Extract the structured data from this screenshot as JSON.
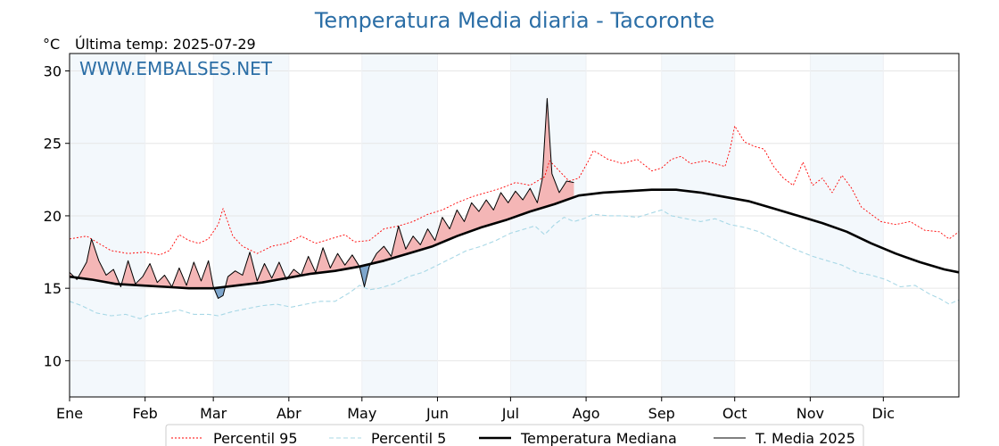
{
  "chart_data": {
    "type": "line",
    "title": "Temperatura Media diaria - Tacoronte",
    "unit_label": "°C",
    "last_temp_label": "Última temp: 2025-07-29",
    "watermark": "WWW.EMBALSES.NET",
    "x_axis": {
      "unit": "day of year",
      "range": [
        1,
        366
      ],
      "month_ticks": [
        {
          "label": "Ene",
          "day": 1
        },
        {
          "label": "Feb",
          "day": 32
        },
        {
          "label": "Mar",
          "day": 60
        },
        {
          "label": "Abr",
          "day": 91
        },
        {
          "label": "May",
          "day": 121
        },
        {
          "label": "Jun",
          "day": 152
        },
        {
          "label": "Jul",
          "day": 182
        },
        {
          "label": "Ago",
          "day": 213
        },
        {
          "label": "Sep",
          "day": 244
        },
        {
          "label": "Oct",
          "day": 274
        },
        {
          "label": "Nov",
          "day": 305
        },
        {
          "label": "Dic",
          "day": 335
        }
      ]
    },
    "y_axis": {
      "range": [
        7.5,
        31.2
      ],
      "ticks": [
        10,
        15,
        20,
        25,
        30
      ]
    },
    "grid": true,
    "legend_position": "bottom",
    "series": [
      {
        "name": "Percentil 95",
        "color": "#ff0000",
        "style": "dotted",
        "points": [
          [
            1,
            18.4
          ],
          [
            8,
            18.6
          ],
          [
            12,
            18.2
          ],
          [
            18,
            17.6
          ],
          [
            25,
            17.4
          ],
          [
            32,
            17.5
          ],
          [
            38,
            17.3
          ],
          [
            42,
            17.6
          ],
          [
            46,
            18.7
          ],
          [
            50,
            18.3
          ],
          [
            54,
            18.1
          ],
          [
            58,
            18.4
          ],
          [
            62,
            19.4
          ],
          [
            64,
            20.5
          ],
          [
            68,
            18.6
          ],
          [
            72,
            17.9
          ],
          [
            78,
            17.4
          ],
          [
            84,
            17.9
          ],
          [
            90,
            18.1
          ],
          [
            96,
            18.6
          ],
          [
            102,
            18.1
          ],
          [
            108,
            18.4
          ],
          [
            114,
            18.7
          ],
          [
            118,
            18.2
          ],
          [
            124,
            18.3
          ],
          [
            130,
            19.1
          ],
          [
            136,
            19.3
          ],
          [
            142,
            19.6
          ],
          [
            148,
            20.1
          ],
          [
            154,
            20.4
          ],
          [
            160,
            20.9
          ],
          [
            166,
            21.3
          ],
          [
            172,
            21.6
          ],
          [
            178,
            21.9
          ],
          [
            184,
            22.3
          ],
          [
            190,
            22.1
          ],
          [
            196,
            22.7
          ],
          [
            198,
            23.8
          ],
          [
            202,
            23.1
          ],
          [
            206,
            22.4
          ],
          [
            210,
            22.6
          ],
          [
            214,
            23.8
          ],
          [
            216,
            24.5
          ],
          [
            222,
            23.9
          ],
          [
            228,
            23.6
          ],
          [
            234,
            23.9
          ],
          [
            240,
            23.1
          ],
          [
            244,
            23.3
          ],
          [
            248,
            23.9
          ],
          [
            252,
            24.1
          ],
          [
            256,
            23.6
          ],
          [
            262,
            23.8
          ],
          [
            266,
            23.6
          ],
          [
            270,
            23.4
          ],
          [
            272,
            24.5
          ],
          [
            274,
            26.2
          ],
          [
            278,
            25.1
          ],
          [
            282,
            24.8
          ],
          [
            286,
            24.6
          ],
          [
            290,
            23.4
          ],
          [
            294,
            22.6
          ],
          [
            298,
            22.1
          ],
          [
            302,
            23.7
          ],
          [
            306,
            22.1
          ],
          [
            310,
            22.6
          ],
          [
            314,
            21.6
          ],
          [
            318,
            22.8
          ],
          [
            322,
            21.9
          ],
          [
            326,
            20.6
          ],
          [
            330,
            20.1
          ],
          [
            334,
            19.6
          ],
          [
            340,
            19.4
          ],
          [
            346,
            19.6
          ],
          [
            352,
            19.0
          ],
          [
            358,
            18.9
          ],
          [
            362,
            18.4
          ],
          [
            366,
            18.9
          ]
        ]
      },
      {
        "name": "Percentil 5",
        "color": "#a8d8e6",
        "style": "dashed",
        "points": [
          [
            1,
            14.1
          ],
          [
            6,
            13.8
          ],
          [
            12,
            13.3
          ],
          [
            18,
            13.1
          ],
          [
            24,
            13.2
          ],
          [
            30,
            12.9
          ],
          [
            34,
            13.2
          ],
          [
            40,
            13.3
          ],
          [
            46,
            13.5
          ],
          [
            52,
            13.2
          ],
          [
            58,
            13.2
          ],
          [
            62,
            13.1
          ],
          [
            68,
            13.4
          ],
          [
            74,
            13.6
          ],
          [
            80,
            13.8
          ],
          [
            86,
            13.9
          ],
          [
            92,
            13.7
          ],
          [
            98,
            13.9
          ],
          [
            104,
            14.1
          ],
          [
            110,
            14.1
          ],
          [
            116,
            14.7
          ],
          [
            120,
            15.2
          ],
          [
            124,
            14.9
          ],
          [
            128,
            15.0
          ],
          [
            134,
            15.3
          ],
          [
            140,
            15.8
          ],
          [
            146,
            16.1
          ],
          [
            152,
            16.6
          ],
          [
            158,
            17.1
          ],
          [
            164,
            17.6
          ],
          [
            170,
            17.9
          ],
          [
            176,
            18.3
          ],
          [
            182,
            18.8
          ],
          [
            186,
            19.0
          ],
          [
            192,
            19.3
          ],
          [
            196,
            18.7
          ],
          [
            200,
            19.4
          ],
          [
            204,
            19.9
          ],
          [
            208,
            19.6
          ],
          [
            212,
            19.8
          ],
          [
            216,
            20.1
          ],
          [
            222,
            20.0
          ],
          [
            228,
            20.0
          ],
          [
            234,
            19.9
          ],
          [
            240,
            20.2
          ],
          [
            244,
            20.4
          ],
          [
            248,
            20.0
          ],
          [
            254,
            19.8
          ],
          [
            260,
            19.6
          ],
          [
            266,
            19.8
          ],
          [
            272,
            19.4
          ],
          [
            278,
            19.2
          ],
          [
            284,
            18.9
          ],
          [
            290,
            18.4
          ],
          [
            296,
            17.9
          ],
          [
            300,
            17.6
          ],
          [
            306,
            17.2
          ],
          [
            312,
            16.9
          ],
          [
            318,
            16.6
          ],
          [
            324,
            16.1
          ],
          [
            330,
            15.9
          ],
          [
            336,
            15.6
          ],
          [
            342,
            15.1
          ],
          [
            348,
            15.2
          ],
          [
            354,
            14.6
          ],
          [
            358,
            14.3
          ],
          [
            362,
            13.9
          ],
          [
            366,
            14.2
          ]
        ]
      },
      {
        "name": "Temperatura Mediana",
        "color": "#000000",
        "style": "solid-thick",
        "points": [
          [
            1,
            15.8
          ],
          [
            10,
            15.6
          ],
          [
            20,
            15.3
          ],
          [
            30,
            15.2
          ],
          [
            40,
            15.1
          ],
          [
            50,
            15.0
          ],
          [
            60,
            15.0
          ],
          [
            70,
            15.2
          ],
          [
            80,
            15.4
          ],
          [
            90,
            15.7
          ],
          [
            100,
            16.0
          ],
          [
            110,
            16.2
          ],
          [
            120,
            16.5
          ],
          [
            130,
            16.9
          ],
          [
            140,
            17.4
          ],
          [
            150,
            17.9
          ],
          [
            160,
            18.6
          ],
          [
            170,
            19.2
          ],
          [
            180,
            19.7
          ],
          [
            190,
            20.3
          ],
          [
            200,
            20.8
          ],
          [
            210,
            21.4
          ],
          [
            220,
            21.6
          ],
          [
            230,
            21.7
          ],
          [
            240,
            21.8
          ],
          [
            250,
            21.8
          ],
          [
            260,
            21.6
          ],
          [
            270,
            21.3
          ],
          [
            280,
            21.0
          ],
          [
            290,
            20.5
          ],
          [
            300,
            20.0
          ],
          [
            310,
            19.5
          ],
          [
            320,
            18.9
          ],
          [
            330,
            18.1
          ],
          [
            340,
            17.4
          ],
          [
            350,
            16.8
          ],
          [
            360,
            16.3
          ],
          [
            366,
            16.1
          ]
        ]
      },
      {
        "name": "T. Media 2025",
        "color": "#000000",
        "style": "solid",
        "points": [
          [
            1,
            16.1
          ],
          [
            4,
            15.6
          ],
          [
            8,
            16.8
          ],
          [
            10,
            18.4
          ],
          [
            13,
            16.9
          ],
          [
            16,
            15.9
          ],
          [
            19,
            16.3
          ],
          [
            22,
            15.1
          ],
          [
            25,
            16.9
          ],
          [
            28,
            15.3
          ],
          [
            31,
            15.8
          ],
          [
            34,
            16.7
          ],
          [
            37,
            15.4
          ],
          [
            40,
            15.9
          ],
          [
            43,
            15.1
          ],
          [
            46,
            16.4
          ],
          [
            49,
            15.2
          ],
          [
            52,
            16.8
          ],
          [
            55,
            15.5
          ],
          [
            58,
            16.9
          ],
          [
            60,
            15.1
          ],
          [
            62,
            14.3
          ],
          [
            64,
            14.5
          ],
          [
            66,
            15.8
          ],
          [
            69,
            16.2
          ],
          [
            72,
            15.9
          ],
          [
            75,
            17.5
          ],
          [
            78,
            15.5
          ],
          [
            81,
            16.7
          ],
          [
            84,
            15.7
          ],
          [
            87,
            16.8
          ],
          [
            90,
            15.6
          ],
          [
            93,
            16.3
          ],
          [
            96,
            15.9
          ],
          [
            99,
            17.2
          ],
          [
            102,
            16.1
          ],
          [
            105,
            17.8
          ],
          [
            108,
            16.4
          ],
          [
            111,
            17.4
          ],
          [
            114,
            16.6
          ],
          [
            117,
            17.3
          ],
          [
            120,
            16.5
          ],
          [
            122,
            15.1
          ],
          [
            124,
            16.5
          ],
          [
            127,
            17.4
          ],
          [
            130,
            17.9
          ],
          [
            133,
            17.2
          ],
          [
            136,
            19.3
          ],
          [
            139,
            17.7
          ],
          [
            142,
            18.6
          ],
          [
            145,
            18.0
          ],
          [
            148,
            19.1
          ],
          [
            151,
            18.3
          ],
          [
            154,
            19.9
          ],
          [
            157,
            19.1
          ],
          [
            160,
            20.4
          ],
          [
            163,
            19.6
          ],
          [
            166,
            20.9
          ],
          [
            169,
            20.3
          ],
          [
            172,
            21.1
          ],
          [
            175,
            20.4
          ],
          [
            178,
            21.6
          ],
          [
            181,
            20.9
          ],
          [
            184,
            21.7
          ],
          [
            187,
            21.1
          ],
          [
            190,
            21.9
          ],
          [
            193,
            20.9
          ],
          [
            195,
            22.5
          ],
          [
            197,
            28.1
          ],
          [
            199,
            22.9
          ],
          [
            202,
            21.6
          ],
          [
            205,
            22.4
          ],
          [
            208,
            22.3
          ]
        ]
      }
    ]
  }
}
